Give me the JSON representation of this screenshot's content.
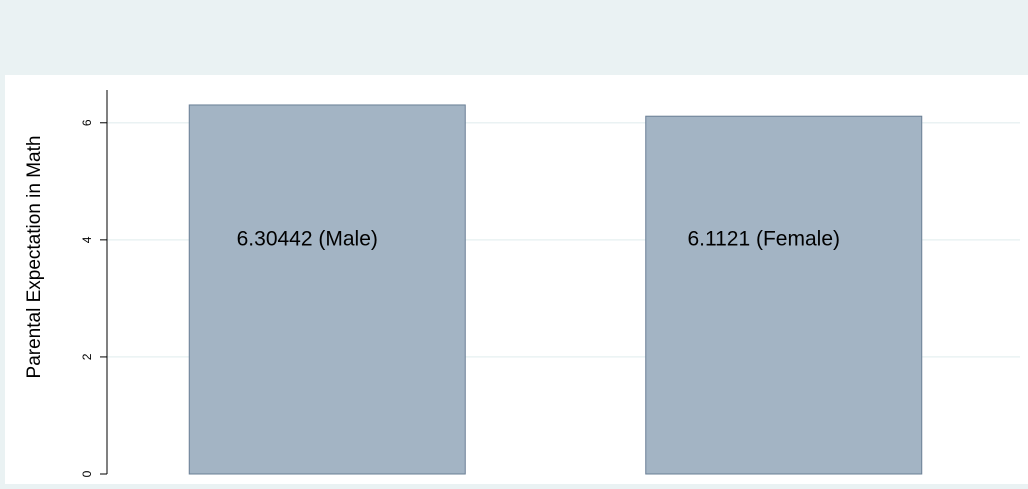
{
  "chart_data": {
    "type": "bar",
    "y_label": "Parental Expectation in Math",
    "values": [
      6.30442,
      6.1121
    ],
    "value_labels": [
      "6.30442 (Male)",
      "6.1121 (Female)"
    ],
    "color": "#a3b4c4",
    "ylim": [
      0,
      6.56
    ],
    "yticks": [
      0,
      2,
      4,
      6
    ],
    "grid": true
  }
}
